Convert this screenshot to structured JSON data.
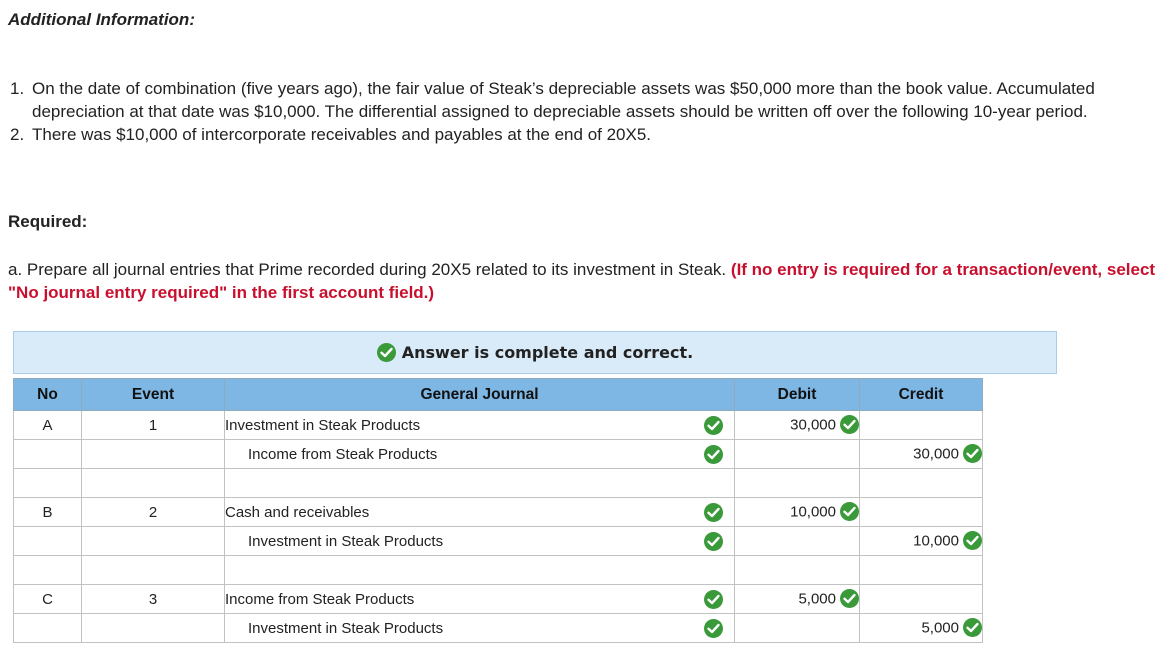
{
  "additional_heading": "Additional Information:",
  "info_items": [
    {
      "num": "1.",
      "text": "On the date of combination (five years ago), the fair value of Steak’s depreciable assets was $50,000 more than the book value. Accumulated depreciation at that date was $10,000. The differential assigned to depreciable assets should be written off over the following 10-year period."
    },
    {
      "num": "2.",
      "text": "There was $10,000 of intercorporate receivables and payables at the end of 20X5."
    }
  ],
  "required_heading": "Required:",
  "question": {
    "text": "a. Prepare all journal entries that Prime recorded during 20X5 related to its investment in Steak.",
    "note": "(If no entry is required for a transaction/event, select \"No journal entry required\" in the first account field.)"
  },
  "banner": {
    "message": "Answer is complete and correct."
  },
  "table": {
    "headers": {
      "no": "No",
      "event": "Event",
      "journal": "General Journal",
      "debit": "Debit",
      "credit": "Credit"
    },
    "rows": [
      {
        "no": "A",
        "event": "1",
        "account": "Investment in Steak Products",
        "debit": "30,000",
        "credit": ""
      },
      {
        "no": "",
        "event": "",
        "account": "Income from Steak Products",
        "debit": "",
        "credit": "30,000"
      },
      {
        "no": "B",
        "event": "2",
        "account": "Cash and receivables",
        "debit": "10,000",
        "credit": ""
      },
      {
        "no": "",
        "event": "",
        "account": "Investment in Steak Products",
        "debit": "",
        "credit": "10,000"
      },
      {
        "no": "C",
        "event": "3",
        "account": "Income from Steak Products",
        "debit": "5,000",
        "credit": ""
      },
      {
        "no": "",
        "event": "",
        "account": "Investment in Steak Products",
        "debit": "",
        "credit": "5,000"
      }
    ]
  },
  "colors": {
    "header_bg": "#7eb6e4",
    "banner_bg": "#d9ebf9",
    "check_green": "#3a9a3a",
    "note_red": "#c8102e"
  },
  "icons": {
    "check": "check-circle-icon"
  }
}
